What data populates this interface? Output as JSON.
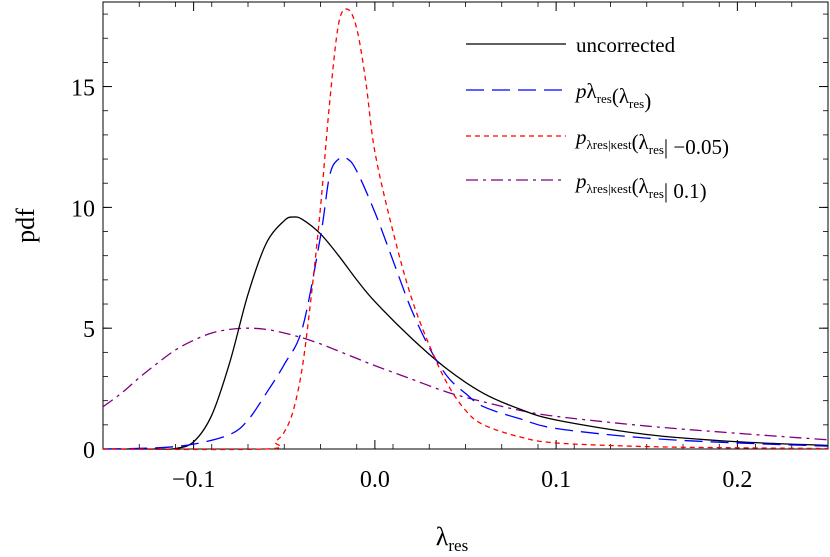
{
  "chart_data": {
    "type": "line",
    "title": "",
    "xlabel": {
      "symbol": "λ",
      "sub": "res"
    },
    "ylabel": "pdf",
    "xlim": [
      -0.15,
      0.25
    ],
    "ylim": [
      0,
      18.5
    ],
    "xticks": [
      -0.1,
      0.0,
      0.1,
      0.2
    ],
    "xtick_labels": [
      "−0.1",
      "0.0",
      "0.1",
      "0.2"
    ],
    "yticks": [
      0,
      5,
      10,
      15
    ],
    "ytick_labels": [
      "0",
      "5",
      "10",
      "15"
    ],
    "legend_position": "top-right",
    "series": [
      {
        "name": "uncorrected",
        "legend": {
          "parts": [
            {
              "t": "uncorrected"
            }
          ]
        },
        "color": "#000000",
        "dash": "",
        "x": [
          -0.15,
          -0.12,
          -0.11,
          -0.1,
          -0.09,
          -0.08,
          -0.07,
          -0.06,
          -0.05,
          -0.045,
          -0.04,
          -0.03,
          -0.02,
          -0.01,
          0.0,
          0.02,
          0.04,
          0.06,
          0.08,
          0.1,
          0.15,
          0.2,
          0.25
        ],
        "y": [
          0.0,
          0.0,
          0.02,
          0.3,
          1.4,
          3.6,
          6.4,
          8.5,
          9.45,
          9.6,
          9.5,
          8.9,
          8.0,
          7.0,
          6.1,
          4.6,
          3.3,
          2.3,
          1.65,
          1.2,
          0.6,
          0.3,
          0.15
        ]
      },
      {
        "name": "p_λres(λres)",
        "legend": {
          "parts": [
            {
              "t": "p",
              "i": true
            },
            {
              "t": "λ",
              "sub": "res"
            },
            {
              "t": "(λ"
            },
            {
              "t": "",
              "sub": "res"
            },
            {
              "t": ")"
            }
          ]
        },
        "color": "#0000ff",
        "dash": "18,8",
        "x": [
          -0.15,
          -0.12,
          -0.1,
          -0.08,
          -0.07,
          -0.06,
          -0.05,
          -0.04,
          -0.03,
          -0.025,
          -0.02,
          -0.015,
          -0.01,
          0.0,
          0.01,
          0.02,
          0.03,
          0.04,
          0.05,
          0.06,
          0.08,
          0.1,
          0.15,
          0.2,
          0.25
        ],
        "y": [
          0.0,
          0.05,
          0.2,
          0.6,
          1.2,
          2.3,
          3.5,
          5.0,
          8.8,
          11.3,
          12.0,
          12.0,
          11.5,
          9.8,
          7.8,
          5.8,
          4.2,
          3.0,
          2.3,
          1.75,
          1.25,
          0.85,
          0.45,
          0.25,
          0.12
        ]
      },
      {
        "name": "p_λres|κest(λres| −0.05)",
        "legend": {
          "parts": [
            {
              "t": "p",
              "i": true
            },
            {
              "t": "",
              "sub": "λres|κest"
            },
            {
              "t": "(λ"
            },
            {
              "t": "",
              "sub": "res"
            },
            {
              "t": "| −0.05)"
            }
          ]
        },
        "color": "#ff0000",
        "dash": "5,4",
        "x": [
          -0.15,
          -0.06,
          -0.055,
          -0.05,
          -0.045,
          -0.04,
          -0.035,
          -0.03,
          -0.025,
          -0.02,
          -0.015,
          -0.01,
          -0.005,
          0.0,
          0.01,
          0.02,
          0.03,
          0.04,
          0.05,
          0.06,
          0.08,
          0.1,
          0.15,
          0.2,
          0.25
        ],
        "y": [
          0.0,
          0.0,
          0.3,
          0.7,
          1.6,
          3.4,
          6.4,
          10.0,
          14.3,
          17.6,
          18.2,
          17.4,
          15.2,
          12.3,
          9.0,
          6.3,
          4.3,
          2.7,
          1.6,
          1.0,
          0.5,
          0.25,
          0.1,
          0.05,
          0.02
        ]
      },
      {
        "name": "p_λres|κest(λres| 0.1)",
        "legend": {
          "parts": [
            {
              "t": "p",
              "i": true
            },
            {
              "t": "",
              "sub": "λres|κest"
            },
            {
              "t": "(λ"
            },
            {
              "t": "",
              "sub": "res"
            },
            {
              "t": "| 0.1)"
            }
          ]
        },
        "color": "#800080",
        "dash": "12,5,3,5",
        "x": [
          -0.15,
          -0.14,
          -0.13,
          -0.12,
          -0.11,
          -0.1,
          -0.09,
          -0.08,
          -0.07,
          -0.06,
          -0.05,
          -0.04,
          -0.03,
          -0.02,
          -0.01,
          0.0,
          0.02,
          0.04,
          0.06,
          0.08,
          0.1,
          0.15,
          0.2,
          0.25
        ],
        "y": [
          1.75,
          2.3,
          2.95,
          3.55,
          4.1,
          4.5,
          4.8,
          4.95,
          5.0,
          4.95,
          4.8,
          4.6,
          4.35,
          4.05,
          3.75,
          3.45,
          2.9,
          2.35,
          1.95,
          1.6,
          1.35,
          0.95,
          0.65,
          0.38
        ]
      }
    ]
  }
}
